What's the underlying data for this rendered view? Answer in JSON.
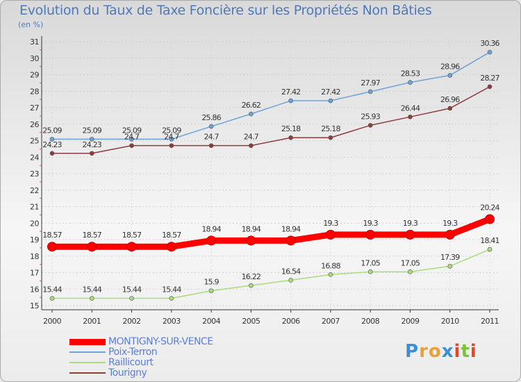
{
  "header": {
    "title": "Evolution du Taux de Taxe Foncière sur les Propriétés Non Bâties",
    "unit": "(en %)"
  },
  "brand": {
    "letters": [
      "P",
      "r",
      "o",
      "x",
      "i",
      "t",
      "i"
    ],
    "colors": [
      "#3a8fd6",
      "#e8a13a",
      "#e8a13a",
      "#3a8fd6",
      "#e0482c",
      "#7cc242",
      "#e0482c"
    ]
  },
  "chart_data": {
    "type": "line",
    "title": "Evolution du Taux de Taxe Foncière sur les Propriétés Non Bâties",
    "ylabel": "(en %)",
    "xlabel": "",
    "x": [
      "2000",
      "2001",
      "2002",
      "2003",
      "2004",
      "2005",
      "2006",
      "2007",
      "2008",
      "2009",
      "2010",
      "2011"
    ],
    "ylim": [
      15,
      31
    ],
    "yticks": [
      "15",
      "16",
      "17",
      "18",
      "19",
      "20",
      "21",
      "22",
      "23",
      "24",
      "25",
      "26",
      "27",
      "28",
      "29",
      "30",
      "31"
    ],
    "grid": "horizontal dashed",
    "legend_position": "bottom-left",
    "series": [
      {
        "name": "MONTIGNY-SUR-VENCE",
        "color": "#ff0000",
        "values": [
          18.57,
          18.57,
          18.57,
          18.57,
          18.94,
          18.94,
          18.94,
          19.3,
          19.3,
          19.3,
          19.3,
          20.24
        ],
        "labels": [
          "18.57",
          "18.57",
          "18.57",
          "18.57",
          "18.94",
          "18.94",
          "18.94",
          "19.3",
          "19.3",
          "19.3",
          "19.3",
          "20.24"
        ],
        "emphasis": true
      },
      {
        "name": "Poix-Terron",
        "color": "#6ea3d8",
        "values": [
          25.09,
          25.09,
          25.09,
          25.09,
          25.86,
          26.62,
          27.42,
          27.42,
          27.97,
          28.53,
          28.96,
          30.36
        ],
        "labels": [
          "25.09",
          "25.09",
          "25.09",
          "25.09",
          "25.86",
          "26.62",
          "27.42",
          "27.42",
          "27.97",
          "28.53",
          "28.96",
          "30.36"
        ],
        "emphasis": false
      },
      {
        "name": "Raillicourt",
        "color": "#a9dc7a",
        "values": [
          15.44,
          15.44,
          15.44,
          15.44,
          15.9,
          16.22,
          16.54,
          16.88,
          17.05,
          17.05,
          17.39,
          18.41
        ],
        "labels": [
          "15.44",
          "15.44",
          "15.44",
          "15.44",
          "15.9",
          "16.22",
          "16.54",
          "16.88",
          "17.05",
          "17.05",
          "17.39",
          "18.41"
        ],
        "emphasis": false
      },
      {
        "name": "Tourigny",
        "color": "#8e3b3b",
        "values": [
          24.23,
          24.23,
          24.7,
          24.7,
          24.7,
          24.7,
          25.18,
          25.18,
          25.93,
          26.44,
          26.96,
          28.27
        ],
        "labels": [
          "24.23",
          "24.23",
          "24.7",
          "24.7",
          "24.7",
          "24.7",
          "25.18",
          "25.18",
          "25.93",
          "26.44",
          "26.96",
          "28.27"
        ],
        "emphasis": false
      }
    ]
  }
}
